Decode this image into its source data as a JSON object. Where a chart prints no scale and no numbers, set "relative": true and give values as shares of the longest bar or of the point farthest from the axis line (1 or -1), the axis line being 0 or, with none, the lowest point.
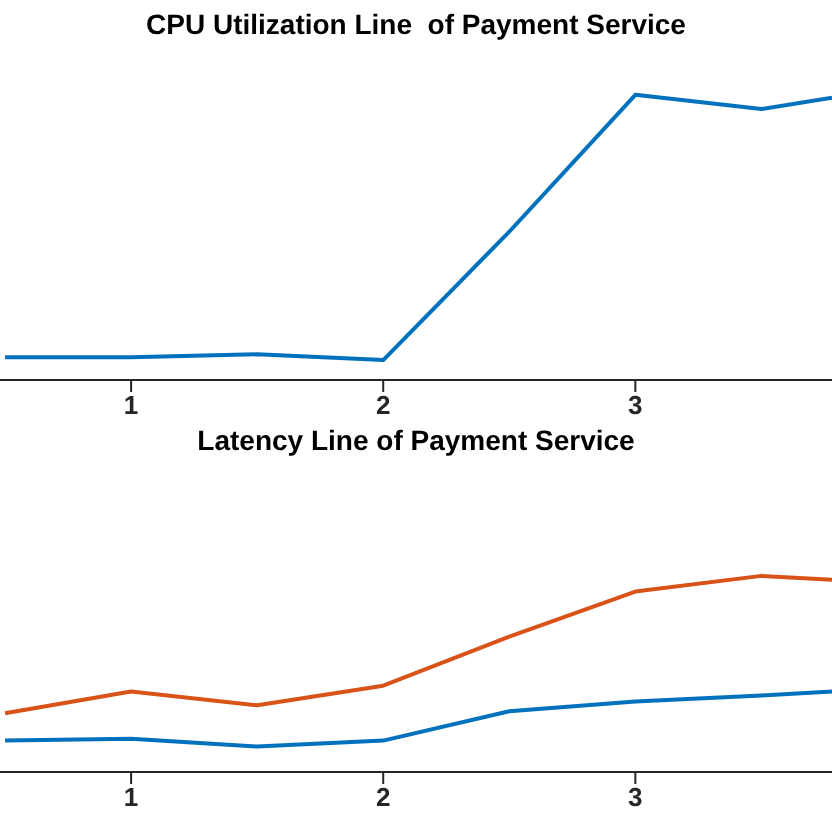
{
  "chart_data": [
    {
      "type": "line",
      "title": "CPU Utilization Line  of Payment Service",
      "relative": true,
      "x": [
        0.5,
        1,
        1.5,
        2,
        2.5,
        3,
        3.5,
        3.78
      ],
      "xlim": [
        0.48,
        3.78
      ],
      "xticks": [
        1,
        2,
        3
      ],
      "tick_labels": "x",
      "series": [
        {
          "color": "#0072bd",
          "values": [
            0.08,
            0.08,
            0.09,
            0.07,
            0.52,
            1,
            0.95,
            0.99
          ]
        }
      ]
    },
    {
      "type": "line",
      "title": "Latency Line of Payment Service",
      "relative": true,
      "x": [
        0.5,
        1,
        1.5,
        2,
        2.5,
        3,
        3.5,
        3.78
      ],
      "xlim": [
        0.48,
        3.78
      ],
      "xticks": [
        1,
        2,
        3
      ],
      "tick_labels": "x",
      "series": [
        {
          "color": "#0072bd",
          "values": [
            0.16,
            0.17,
            0.13,
            0.16,
            0.31,
            0.36,
            0.39,
            0.41
          ]
        },
        {
          "color": "#d95319",
          "values": [
            0.3,
            0.41,
            0.34,
            0.44,
            0.69,
            0.92,
            1,
            0.98
          ]
        }
      ]
    }
  ]
}
